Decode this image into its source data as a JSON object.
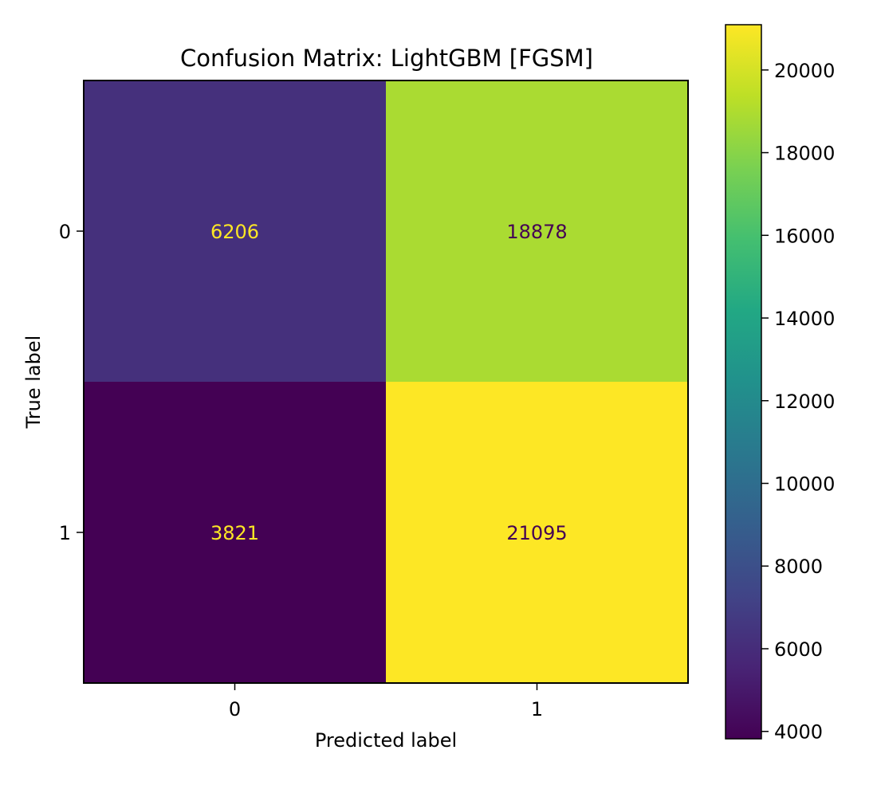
{
  "chart_data": {
    "type": "heatmap",
    "title": "Confusion Matrix: LightGBM [FGSM]",
    "xlabel": "Predicted label",
    "ylabel": "True label",
    "x_categories": [
      "0",
      "1"
    ],
    "y_categories": [
      "0",
      "1"
    ],
    "values": [
      [
        6206,
        18878
      ],
      [
        3821,
        21095
      ]
    ],
    "colormap": "viridis",
    "colorbar": {
      "range": [
        3821,
        21095
      ],
      "ticks": [
        "4000",
        "6000",
        "8000",
        "10000",
        "12000",
        "14000",
        "16000",
        "18000",
        "20000"
      ]
    },
    "grid": false
  }
}
